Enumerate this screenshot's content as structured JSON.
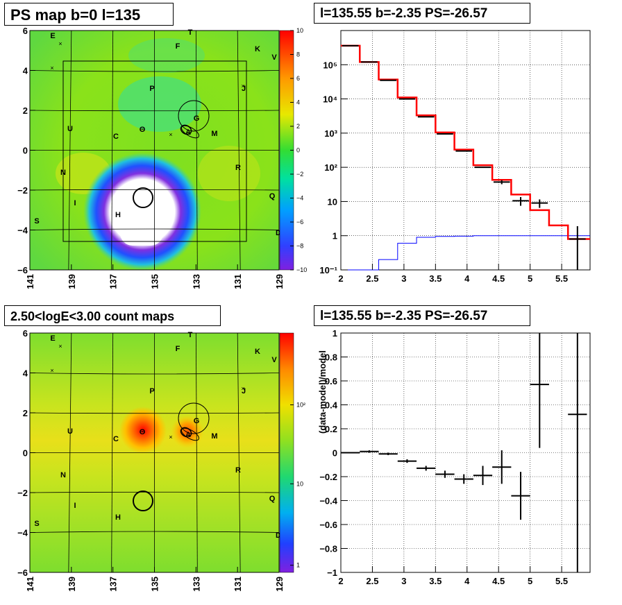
{
  "panels": {
    "top_left_title": "PS map b=0 l=135",
    "top_right_title": "l=135.55 b=-2.35 PS=-26.57",
    "bottom_left_title": "2.50<logE<3.00 count maps",
    "bottom_right_title": "l=135.55 b=-2.35 PS=-26.57"
  },
  "source_labels": [
    "E",
    "T",
    "F",
    "K",
    "V",
    "P",
    "J",
    "G",
    "U",
    "C",
    "A",
    "M",
    "N",
    "R",
    "I",
    "Q",
    "S",
    "H",
    "D"
  ],
  "chart_data": [
    {
      "type": "heatmap",
      "name": "ps_map",
      "x_ticks": [
        "141",
        "139",
        "137",
        "135",
        "133",
        "131",
        "129"
      ],
      "y_ticks": [
        "6",
        "4",
        "2",
        "0",
        "−2",
        "−4",
        "−6"
      ],
      "colorbar_ticks": [
        "10",
        "8",
        "6",
        "4",
        "2",
        "0",
        "−2",
        "−4",
        "−6",
        "−8",
        "−10"
      ],
      "colorbar_range": [
        -10,
        10
      ]
    },
    {
      "type": "line",
      "name": "spectrum",
      "xlim": [
        2,
        5.95
      ],
      "ylim_log": [
        0.1,
        1000000
      ],
      "x_ticks": [
        "2",
        "2.5",
        "3",
        "3.5",
        "4",
        "4.5",
        "5",
        "5.5"
      ],
      "y_ticks": [
        "10⁻¹",
        "1",
        "10",
        "10²",
        "10³",
        "10⁴",
        "10⁵"
      ],
      "data_x": [
        2.15,
        2.45,
        2.75,
        3.05,
        3.35,
        3.65,
        3.95,
        4.25,
        4.55,
        4.85,
        5.15,
        5.45,
        5.75
      ],
      "data_y": [
        360000,
        120000,
        35000,
        10000,
        3000,
        950,
        300,
        100,
        37,
        10.5,
        9,
        0,
        0.8
      ],
      "data_yerr": [
        0,
        0,
        0,
        0,
        0,
        0,
        0,
        0,
        5,
        3,
        2.5,
        0,
        1.1
      ],
      "model_edges": [
        2.0,
        2.3,
        2.6,
        2.9,
        3.2,
        3.5,
        3.8,
        4.1,
        4.4,
        4.7,
        5.0,
        5.3,
        5.6,
        5.95
      ],
      "model_red": [
        360000,
        120000,
        37000,
        11000,
        3300,
        1050,
        330,
        115,
        43,
        16,
        5.6,
        2.0,
        0.8
      ],
      "model_blue": [
        0.05,
        0.05,
        0.2,
        0.6,
        0.9,
        0.95,
        0.97,
        1.0,
        1.0,
        1.0,
        1.0,
        1.0,
        1.0
      ],
      "colors": {
        "data": "#000000",
        "model": "#ff0000",
        "background": "#0000ff"
      }
    },
    {
      "type": "heatmap",
      "name": "count_map",
      "x_ticks": [
        "141",
        "139",
        "137",
        "135",
        "133",
        "131",
        "129"
      ],
      "y_ticks": [
        "6",
        "4",
        "2",
        "0",
        "−2",
        "−4",
        "−6"
      ],
      "colorbar_ticks": [
        "10²",
        "10",
        "1"
      ]
    },
    {
      "type": "scatter",
      "name": "residuals",
      "ylabel": "(data-model)/model",
      "xlim": [
        2,
        5.95
      ],
      "ylim": [
        -1,
        1
      ],
      "x_ticks": [
        "2",
        "2.5",
        "3",
        "3.5",
        "4",
        "4.5",
        "5",
        "5.5"
      ],
      "y_ticks": [
        "1",
        "0.8",
        "0.6",
        "0.4",
        "0.2",
        "0",
        "−0.2",
        "−0.4",
        "−0.6",
        "−0.8",
        "−1"
      ],
      "x": [
        2.15,
        2.45,
        2.75,
        3.05,
        3.35,
        3.65,
        3.95,
        4.25,
        4.55,
        4.85,
        5.15,
        5.75
      ],
      "y": [
        0.0,
        0.01,
        -0.01,
        -0.07,
        -0.13,
        -0.18,
        -0.22,
        -0.19,
        -0.12,
        -0.36,
        0.57,
        0.32
      ],
      "yerr": [
        0.005,
        0.01,
        0.01,
        0.015,
        0.02,
        0.03,
        0.04,
        0.08,
        0.14,
        0.2,
        0.53,
        1.4
      ],
      "xerr": [
        0.15,
        0.15,
        0.15,
        0.15,
        0.15,
        0.15,
        0.15,
        0.15,
        0.15,
        0.15,
        0.15,
        0.15
      ]
    }
  ]
}
